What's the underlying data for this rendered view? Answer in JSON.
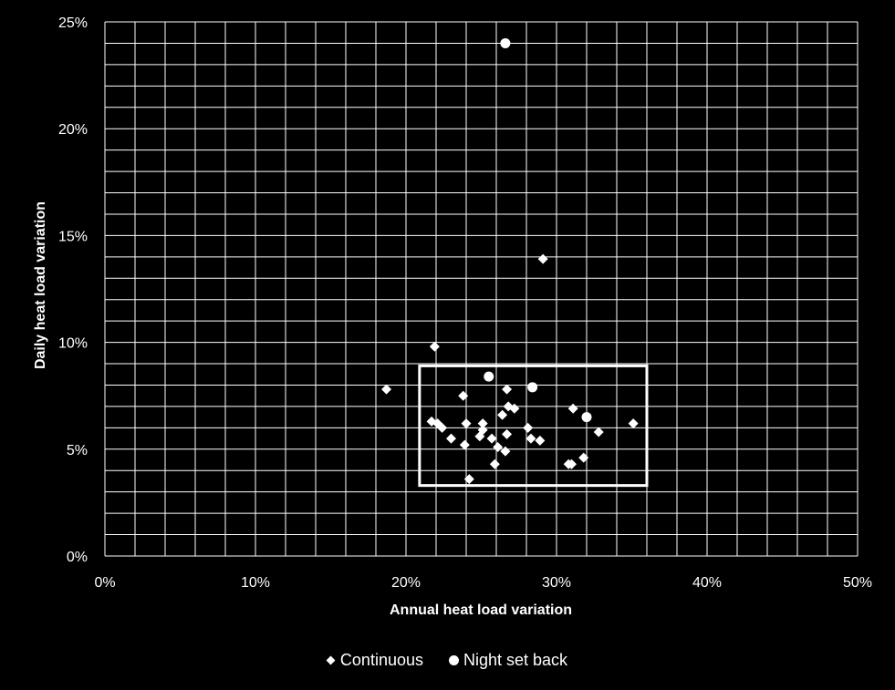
{
  "chart_data": {
    "type": "scatter",
    "xlabel": "Annual heat load variation",
    "ylabel": "Daily heat load variation",
    "xlim": [
      0,
      0.5
    ],
    "ylim": [
      0,
      0.25
    ],
    "x_major_ticks": [
      0,
      0.1,
      0.2,
      0.3,
      0.4,
      0.5
    ],
    "x_tick_labels": [
      "0%",
      "10%",
      "20%",
      "30%",
      "40%",
      "50%"
    ],
    "y_major_ticks": [
      0,
      0.05,
      0.1,
      0.15,
      0.2,
      0.25
    ],
    "y_tick_labels": [
      "0%",
      "5%",
      "10%",
      "15%",
      "20%",
      "25%"
    ],
    "x_minor_step": 0.02,
    "y_minor_step": 0.01,
    "grid": true,
    "legend_position": "bottom",
    "colors": {
      "background": "#000000",
      "foreground": "#ffffff"
    },
    "series": [
      {
        "name": "Continuous",
        "marker": "diamond",
        "points": [
          [
            0.187,
            0.078
          ],
          [
            0.219,
            0.098
          ],
          [
            0.217,
            0.063
          ],
          [
            0.221,
            0.062
          ],
          [
            0.224,
            0.06
          ],
          [
            0.23,
            0.055
          ],
          [
            0.238,
            0.075
          ],
          [
            0.24,
            0.062
          ],
          [
            0.239,
            0.052
          ],
          [
            0.242,
            0.036
          ],
          [
            0.249,
            0.056
          ],
          [
            0.251,
            0.062
          ],
          [
            0.251,
            0.059
          ],
          [
            0.257,
            0.055
          ],
          [
            0.259,
            0.043
          ],
          [
            0.261,
            0.051
          ],
          [
            0.264,
            0.066
          ],
          [
            0.266,
            0.049
          ],
          [
            0.267,
            0.057
          ],
          [
            0.267,
            0.078
          ],
          [
            0.268,
            0.07
          ],
          [
            0.272,
            0.069
          ],
          [
            0.281,
            0.06
          ],
          [
            0.283,
            0.055
          ],
          [
            0.289,
            0.054
          ],
          [
            0.291,
            0.139
          ],
          [
            0.308,
            0.043
          ],
          [
            0.31,
            0.043
          ],
          [
            0.311,
            0.069
          ],
          [
            0.318,
            0.046
          ],
          [
            0.328,
            0.058
          ],
          [
            0.351,
            0.062
          ]
        ]
      },
      {
        "name": "Night set back",
        "marker": "circle",
        "points": [
          [
            0.266,
            0.24
          ],
          [
            0.255,
            0.084
          ],
          [
            0.284,
            0.079
          ],
          [
            0.32,
            0.065
          ]
        ]
      }
    ],
    "annotations": [
      {
        "type": "rectangle",
        "x0": 0.209,
        "x1": 0.36,
        "y0": 0.033,
        "y1": 0.089
      }
    ]
  },
  "legend": {
    "items": [
      {
        "label": "Continuous",
        "marker": "diamond"
      },
      {
        "label": "Night set back",
        "marker": "circle"
      }
    ]
  }
}
